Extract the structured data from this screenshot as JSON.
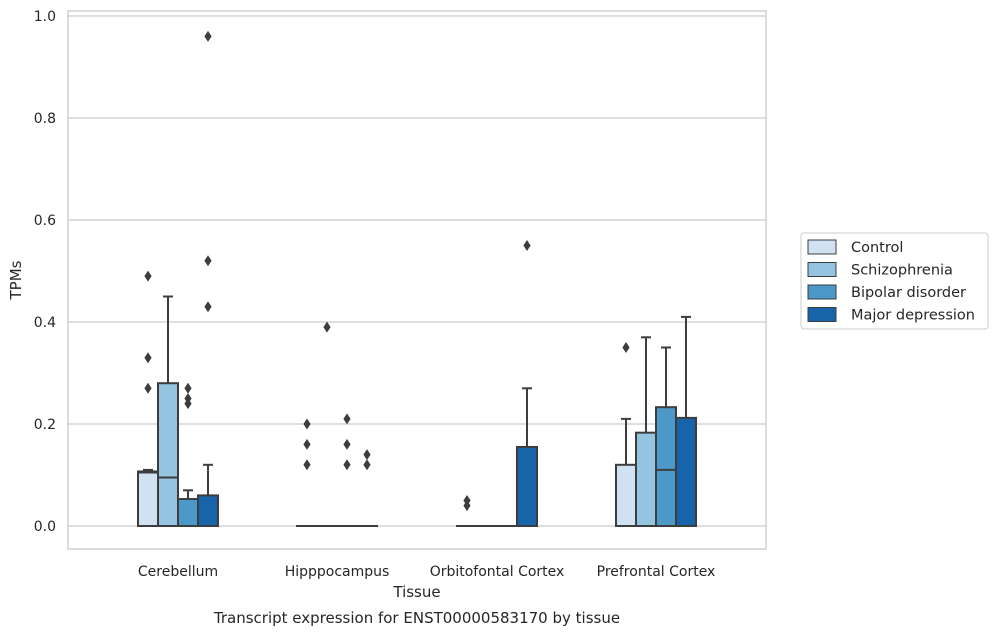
{
  "chart_data": {
    "type": "box",
    "title": "",
    "caption": "Transcript expression for ENST00000583170 by tissue",
    "xlabel": "Tissue",
    "ylabel": "TPMs",
    "ylim": [
      -0.045,
      1.01
    ],
    "yticks": [
      "0.0",
      "0.2",
      "0.4",
      "0.6",
      "0.8",
      "1.0"
    ],
    "grid": true,
    "legend_position": "right",
    "categories": [
      "Cerebellum",
      "Hipppocampus",
      "Orbitofontal Cortex",
      "Prefrontal Cortex"
    ],
    "series": [
      {
        "name": "Control",
        "color": "#d0e1f2",
        "boxes": [
          {
            "q1": 0.0,
            "median": 0.105,
            "q3": 0.107,
            "whisker_low": 0.0,
            "whisker_high": 0.11,
            "outliers": [
              0.27,
              0.33,
              0.49
            ]
          },
          {
            "q1": 0.0,
            "median": 0.0,
            "q3": 0.0,
            "whisker_low": 0.0,
            "whisker_high": 0.0,
            "outliers": [
              0.12,
              0.16,
              0.2
            ]
          },
          {
            "q1": 0.0,
            "median": 0.0,
            "q3": 0.0,
            "whisker_low": 0.0,
            "whisker_high": 0.0,
            "outliers": [
              0.04,
              0.05
            ]
          },
          {
            "q1": 0.0,
            "median": 0.0,
            "q3": 0.12,
            "whisker_low": 0.0,
            "whisker_high": 0.21,
            "outliers": [
              0.35
            ]
          }
        ]
      },
      {
        "name": "Schizophrenia",
        "color": "#94c4df",
        "boxes": [
          {
            "q1": 0.0,
            "median": 0.095,
            "q3": 0.28,
            "whisker_low": 0.0,
            "whisker_high": 0.45,
            "outliers": []
          },
          {
            "q1": 0.0,
            "median": 0.0,
            "q3": 0.0,
            "whisker_low": 0.0,
            "whisker_high": 0.0,
            "outliers": [
              0.39
            ]
          },
          {
            "q1": 0.0,
            "median": 0.0,
            "q3": 0.0,
            "whisker_low": 0.0,
            "whisker_high": 0.0,
            "outliers": []
          },
          {
            "q1": 0.0,
            "median": 0.0,
            "q3": 0.183,
            "whisker_low": 0.0,
            "whisker_high": 0.37,
            "outliers": []
          }
        ]
      },
      {
        "name": "Bipolar disorder",
        "color": "#4b98c9",
        "boxes": [
          {
            "q1": 0.0,
            "median": 0.0,
            "q3": 0.053,
            "whisker_low": 0.0,
            "whisker_high": 0.07,
            "outliers": [
              0.24,
              0.25,
              0.27
            ]
          },
          {
            "q1": 0.0,
            "median": 0.0,
            "q3": 0.0,
            "whisker_low": 0.0,
            "whisker_high": 0.0,
            "outliers": [
              0.12,
              0.16,
              0.21
            ]
          },
          {
            "q1": 0.0,
            "median": 0.0,
            "q3": 0.0,
            "whisker_low": 0.0,
            "whisker_high": 0.0,
            "outliers": []
          },
          {
            "q1": 0.0,
            "median": 0.11,
            "q3": 0.233,
            "whisker_low": 0.0,
            "whisker_high": 0.35,
            "outliers": []
          }
        ]
      },
      {
        "name": "Major depression",
        "color": "#1764ab",
        "boxes": [
          {
            "q1": 0.0,
            "median": 0.0,
            "q3": 0.06,
            "whisker_low": 0.0,
            "whisker_high": 0.12,
            "outliers": [
              0.43,
              0.52,
              0.96
            ]
          },
          {
            "q1": 0.0,
            "median": 0.0,
            "q3": 0.0,
            "whisker_low": 0.0,
            "whisker_high": 0.0,
            "outliers": [
              0.12,
              0.14
            ]
          },
          {
            "q1": 0.0,
            "median": 0.0,
            "q3": 0.155,
            "whisker_low": 0.0,
            "whisker_high": 0.27,
            "outliers": [
              0.55
            ]
          },
          {
            "q1": 0.0,
            "median": 0.0,
            "q3": 0.212,
            "whisker_low": 0.0,
            "whisker_high": 0.41,
            "outliers": []
          }
        ]
      }
    ]
  }
}
